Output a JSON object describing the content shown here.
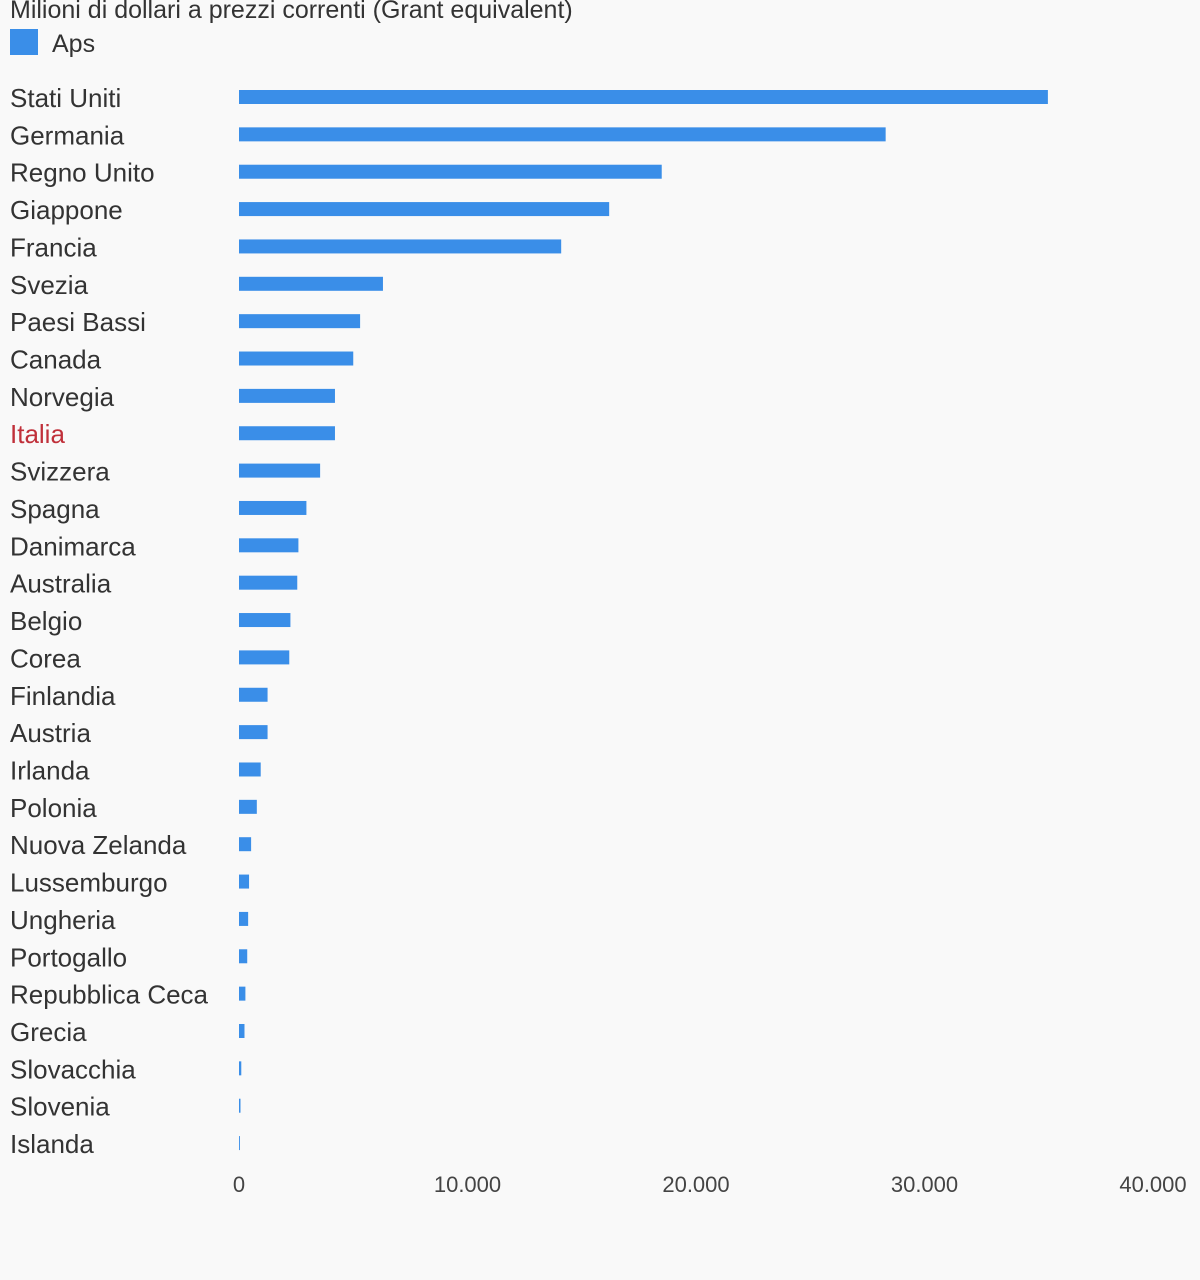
{
  "subtitle": "Milioni di dollari a prezzi correnti (Grant equivalent)",
  "colors": {
    "bar": "#3a8ee8",
    "label": "#333333",
    "highlight_label": "#c0303a",
    "background": "#f9f9f9"
  },
  "chart_data": {
    "type": "bar",
    "orientation": "horizontal",
    "categories": [
      "Stati Uniti",
      "Germania",
      "Regno Unito",
      "Giappone",
      "Francia",
      "Svezia",
      "Paesi Bassi",
      "Canada",
      "Norvegia",
      "Italia",
      "Svizzera",
      "Spagna",
      "Danimarca",
      "Australia",
      "Belgio",
      "Corea",
      "Finlandia",
      "Austria",
      "Irlanda",
      "Polonia",
      "Nuova Zelanda",
      "Lussemburgo",
      "Ungheria",
      "Portogallo",
      "Repubblica Ceca",
      "Grecia",
      "Slovacchia",
      "Slovenia",
      "Islanda"
    ],
    "highlight_category": "Italia",
    "series": [
      {
        "name": "Aps",
        "values": [
          35400,
          28300,
          18500,
          16200,
          14100,
          6300,
          5300,
          5000,
          4200,
          4200,
          3550,
          2950,
          2600,
          2550,
          2250,
          2200,
          1250,
          1250,
          950,
          780,
          530,
          440,
          400,
          360,
          280,
          240,
          100,
          65,
          40
        ]
      }
    ],
    "xlim": [
      0,
      40000
    ],
    "xticks": [
      0,
      10000,
      20000,
      30000,
      40000
    ],
    "xtick_labels": [
      "0",
      "10.000",
      "20.000",
      "30.000",
      "40.000"
    ],
    "grid": false,
    "legend": "top-left"
  }
}
